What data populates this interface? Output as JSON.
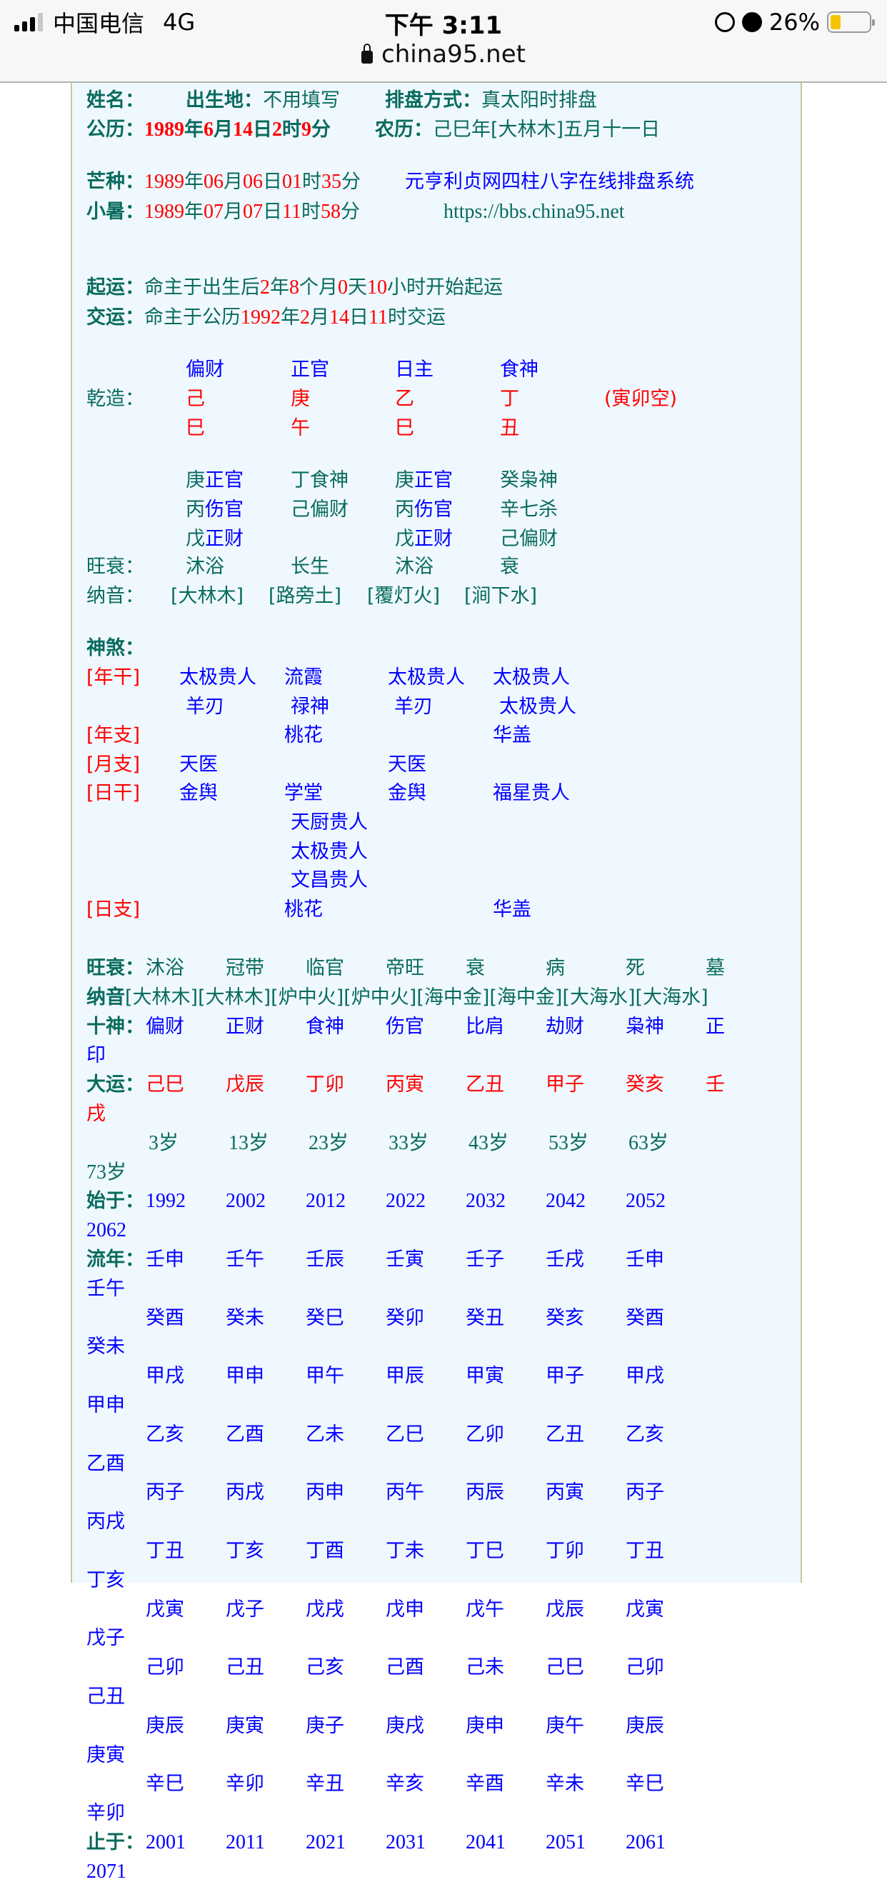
{
  "status_bar": {
    "carrier": "中国电信",
    "network": "4G",
    "time": "下午 3:11",
    "battery_text": "26%",
    "battery_level": 0.26,
    "battery_color": "#f5c400",
    "icons": [
      "signal-icon",
      "orientation-lock-icon",
      "alarm-icon",
      "battery-icon",
      "lock-icon"
    ]
  },
  "browser": {
    "url": "china95.net"
  },
  "colors": {
    "label": "#086b5e",
    "highlight": "#ff0000",
    "link": "#0000ff",
    "panel_bg": "#f0f8ff"
  },
  "header": {
    "name_label": "姓名：",
    "birthplace_label": "出生地：",
    "birthplace": "不用填写",
    "method_label": "排盘方式：",
    "method": "真太阳时排盘",
    "solar_label": "公历：",
    "solar": [
      [
        "1989",
        1
      ],
      [
        "年",
        0
      ],
      [
        "6",
        1
      ],
      [
        "月",
        0
      ],
      [
        "14",
        1
      ],
      [
        "日",
        0
      ],
      [
        "2",
        1
      ],
      [
        "时",
        0
      ],
      [
        "9",
        1
      ],
      [
        "分",
        0
      ]
    ],
    "lunar_label": "农历：",
    "lunar": "己巳年[大林木]五月十一日",
    "mangzhong_label": "芒种：",
    "mangzhong": [
      [
        "1989",
        1
      ],
      [
        "年",
        0
      ],
      [
        "06",
        1
      ],
      [
        "月",
        0
      ],
      [
        "06",
        1
      ],
      [
        "日",
        0
      ],
      [
        "01",
        1
      ],
      [
        "时",
        0
      ],
      [
        "35",
        1
      ],
      [
        "分",
        0
      ]
    ],
    "system_title": "元亨利贞网四柱八字在线排盘系统",
    "xiaoshu_label": "小暑：",
    "xiaoshu": [
      [
        "1989",
        1
      ],
      [
        "年",
        0
      ],
      [
        "07",
        1
      ],
      [
        "月",
        0
      ],
      [
        "07",
        1
      ],
      [
        "日",
        0
      ],
      [
        "11",
        1
      ],
      [
        "时",
        0
      ],
      [
        "58",
        1
      ],
      [
        "分",
        0
      ]
    ],
    "site_url": "https://bbs.china95.net",
    "qiyun_label": "起运：",
    "qiyun": [
      [
        "命主于出生后",
        0
      ],
      [
        "2",
        1
      ],
      [
        "年",
        0
      ],
      [
        "8",
        1
      ],
      [
        "个月",
        0
      ],
      [
        "0",
        1
      ],
      [
        "天",
        0
      ],
      [
        "10",
        1
      ],
      [
        "小时开始起运",
        0
      ]
    ],
    "jiaoyun_label": "交运：",
    "jiaoyun": [
      [
        "命主于公历",
        0
      ],
      [
        "1992",
        1
      ],
      [
        "年",
        0
      ],
      [
        "2",
        1
      ],
      [
        "月",
        0
      ],
      [
        "14",
        1
      ],
      [
        "日",
        0
      ],
      [
        "11",
        1
      ],
      [
        "时交运",
        0
      ]
    ]
  },
  "pillars": {
    "label": "乾造：",
    "ten_gods": [
      "偏财",
      "正官",
      "日主",
      "食神"
    ],
    "stems": [
      "己",
      "庚",
      "乙",
      "丁"
    ],
    "branches": [
      "巳",
      "午",
      "巳",
      "丑"
    ],
    "void": "(寅卯空)",
    "hidden": [
      [
        {
          "stem": "庚",
          "god": "正官",
          "hl": true
        },
        {
          "stem": "丙",
          "god": "伤官",
          "hl": true
        },
        {
          "stem": "戊",
          "god": "正财",
          "hl": true
        }
      ],
      [
        {
          "stem": "丁",
          "god": "食神",
          "hl": false
        },
        {
          "stem": "己",
          "god": "偏财",
          "hl": false
        }
      ],
      [
        {
          "stem": "庚",
          "god": "正官",
          "hl": true
        },
        {
          "stem": "丙",
          "god": "伤官",
          "hl": true
        },
        {
          "stem": "戊",
          "god": "正财",
          "hl": true
        }
      ],
      [
        {
          "stem": "癸",
          "god": "枭神",
          "hl": false
        },
        {
          "stem": "辛",
          "god": "七杀",
          "hl": false
        },
        {
          "stem": "己",
          "god": "偏财",
          "hl": false
        }
      ]
    ],
    "wangshuai_label": "旺衰：",
    "wangshuai": [
      "沐浴",
      "长生",
      "沐浴",
      "衰"
    ],
    "nayin_label": "纳音：",
    "nayin": [
      "[大林木]",
      "[路旁土]",
      "[覆灯火]",
      "[涧下水]"
    ]
  },
  "shensha": {
    "label": "神煞：",
    "rows": [
      {
        "label": "[年干]",
        "cells": [
          "太极贵人",
          "流霞",
          "太极贵人",
          "太极贵人"
        ]
      },
      {
        "label": "",
        "cells": [
          "羊刃",
          "禄神",
          "羊刃",
          "太极贵人"
        ]
      },
      {
        "label": "[年支]",
        "cells": [
          "",
          "桃花",
          "",
          "华盖"
        ]
      },
      {
        "label": "[月支]",
        "cells": [
          "天医",
          "",
          "天医",
          ""
        ]
      },
      {
        "label": "[日干]",
        "cells": [
          "金舆",
          "学堂",
          "金舆",
          "福星贵人"
        ]
      },
      {
        "label": "",
        "cells": [
          "",
          "天厨贵人",
          "",
          ""
        ]
      },
      {
        "label": "",
        "cells": [
          "",
          "太极贵人",
          "",
          ""
        ]
      },
      {
        "label": "",
        "cells": [
          "",
          "文昌贵人",
          "",
          ""
        ]
      },
      {
        "label": "[日支]",
        "cells": [
          "",
          "桃花",
          "",
          "华盖"
        ]
      }
    ]
  },
  "luck": {
    "wangshuai_label": "旺衰：",
    "wangshuai": [
      "沐浴",
      "冠带",
      "临官",
      "帝旺",
      "衰",
      "病",
      "死",
      "墓"
    ],
    "nayin_label": "纳音",
    "nayin": [
      "[大林木]",
      "[大林木]",
      "[炉中火]",
      "[炉中火]",
      "[海中金]",
      "[海中金]",
      "[大海水]",
      "[大海水]"
    ],
    "shishen_label": "十神：",
    "shishen": [
      "偏财",
      "正财",
      "食神",
      "伤官",
      "比肩",
      "劫财",
      "枭神",
      "正印"
    ],
    "dayun_label": "大运：",
    "dayun": [
      "己巳",
      "戊辰",
      "丁卯",
      "丙寅",
      "乙丑",
      "甲子",
      "癸亥",
      "壬戌"
    ],
    "ages": [
      "3岁",
      "13岁",
      "23岁",
      "33岁",
      "43岁",
      "53岁",
      "63岁",
      "73岁"
    ],
    "start_label": "始于：",
    "start_years": [
      "1992",
      "2002",
      "2012",
      "2022",
      "2032",
      "2042",
      "2052",
      "2062"
    ],
    "liunian_label": "流年：",
    "liunian": [
      [
        "壬申",
        "壬午",
        "壬辰",
        "壬寅",
        "壬子",
        "壬戌",
        "壬申",
        "壬午"
      ],
      [
        "癸酉",
        "癸未",
        "癸巳",
        "癸卯",
        "癸丑",
        "癸亥",
        "癸酉",
        "癸未"
      ],
      [
        "甲戌",
        "甲申",
        "甲午",
        "甲辰",
        "甲寅",
        "甲子",
        "甲戌",
        "甲申"
      ],
      [
        "乙亥",
        "乙酉",
        "乙未",
        "乙巳",
        "乙卯",
        "乙丑",
        "乙亥",
        "乙酉"
      ],
      [
        "丙子",
        "丙戌",
        "丙申",
        "丙午",
        "丙辰",
        "丙寅",
        "丙子",
        "丙戌"
      ],
      [
        "丁丑",
        "丁亥",
        "丁酉",
        "丁未",
        "丁巳",
        "丁卯",
        "丁丑",
        "丁亥"
      ],
      [
        "戊寅",
        "戊子",
        "戊戌",
        "戊申",
        "戊午",
        "戊辰",
        "戊寅",
        "戊子"
      ],
      [
        "己卯",
        "己丑",
        "己亥",
        "己酉",
        "己未",
        "己巳",
        "己卯",
        "己丑"
      ],
      [
        "庚辰",
        "庚寅",
        "庚子",
        "庚戌",
        "庚申",
        "庚午",
        "庚辰",
        "庚寅"
      ],
      [
        "辛巳",
        "辛卯",
        "辛丑",
        "辛亥",
        "辛酉",
        "辛未",
        "辛巳",
        "辛卯"
      ]
    ],
    "end_label": "止于：",
    "end_years": [
      "2001",
      "2011",
      "2021",
      "2031",
      "2041",
      "2051",
      "2061",
      "2071"
    ]
  }
}
